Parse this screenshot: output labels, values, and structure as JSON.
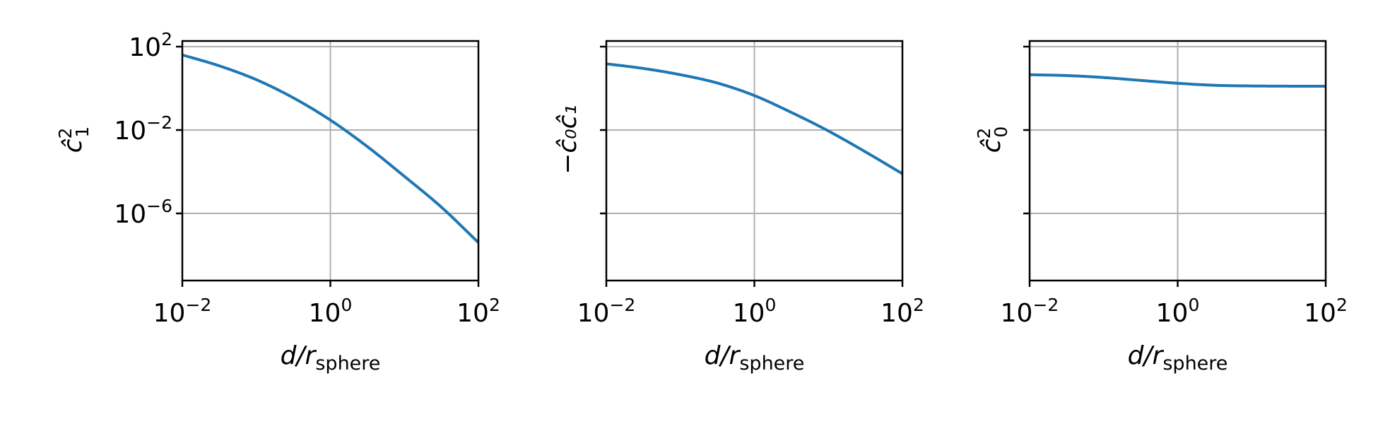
{
  "chart_data": [
    {
      "type": "line",
      "xscale": "log",
      "yscale": "log",
      "xlim": [
        0.01,
        100
      ],
      "ylim": [
        1e-10,
        200
      ],
      "grid": true,
      "xticks": [
        0.01,
        1,
        100
      ],
      "xtick_labels": [
        {
          "base": "10",
          "exp": "−2"
        },
        {
          "base": "10",
          "exp": "0"
        },
        {
          "base": "10",
          "exp": "2"
        }
      ],
      "yticks": [
        100,
        0.01,
        1e-06
      ],
      "ytick_labels": [
        {
          "base": "10",
          "exp": "2"
        },
        {
          "base": "10",
          "exp": "−2"
        },
        {
          "base": "10",
          "exp": "−6"
        }
      ],
      "xlabel": {
        "main": "d/r",
        "sub": "sphere"
      },
      "ylabel": {
        "main": "ĉ",
        "sub": "1",
        "sup": "2"
      },
      "series": [
        {
          "color": "#1f77b4",
          "x": [
            0.01,
            0.0316,
            0.1,
            0.316,
            1,
            3.16,
            10,
            31.6,
            100
          ],
          "y": [
            40,
            12,
            2.6,
            0.35,
            0.03,
            0.0016,
            6e-05,
            2e-06,
            4e-08
          ]
        }
      ]
    },
    {
      "type": "line",
      "xscale": "log",
      "yscale": "log",
      "xlim": [
        0.01,
        100
      ],
      "ylim": [
        1e-10,
        200
      ],
      "grid": true,
      "xticks": [
        0.01,
        1,
        100
      ],
      "xtick_labels": [
        {
          "base": "10",
          "exp": "−2"
        },
        {
          "base": "10",
          "exp": "0"
        },
        {
          "base": "10",
          "exp": "2"
        }
      ],
      "yticks": [
        100,
        0.01,
        1e-06
      ],
      "ytick_labels": [],
      "xlabel": {
        "main": "d/r",
        "sub": "sphere"
      },
      "ylabel": {
        "main": "−ĉ₀ĉ₁"
      },
      "series": [
        {
          "color": "#1f77b4",
          "x": [
            0.01,
            0.0316,
            0.1,
            0.316,
            1,
            3.16,
            10,
            31.6,
            100
          ],
          "y": [
            15,
            9,
            4.5,
            1.8,
            0.45,
            0.07,
            0.009,
            0.0009,
            8e-05
          ]
        }
      ]
    },
    {
      "type": "line",
      "xscale": "log",
      "yscale": "log",
      "xlim": [
        0.01,
        100
      ],
      "ylim": [
        1e-10,
        200
      ],
      "grid": true,
      "xticks": [
        0.01,
        1,
        100
      ],
      "xtick_labels": [
        {
          "base": "10",
          "exp": "−2"
        },
        {
          "base": "10",
          "exp": "0"
        },
        {
          "base": "10",
          "exp": "2"
        }
      ],
      "yticks": [
        100,
        0.01,
        1e-06
      ],
      "ytick_labels": [],
      "xlabel": {
        "main": "d/r",
        "sub": "sphere"
      },
      "ylabel": {
        "main": "ĉ",
        "sub": "0",
        "sup": "2"
      },
      "series": [
        {
          "color": "#1f77b4",
          "x": [
            0.01,
            0.0316,
            0.1,
            0.316,
            1,
            3.16,
            10,
            31.6,
            100
          ],
          "y": [
            4.5,
            4.1,
            3.3,
            2.4,
            1.75,
            1.4,
            1.3,
            1.27,
            1.26
          ]
        }
      ]
    }
  ]
}
